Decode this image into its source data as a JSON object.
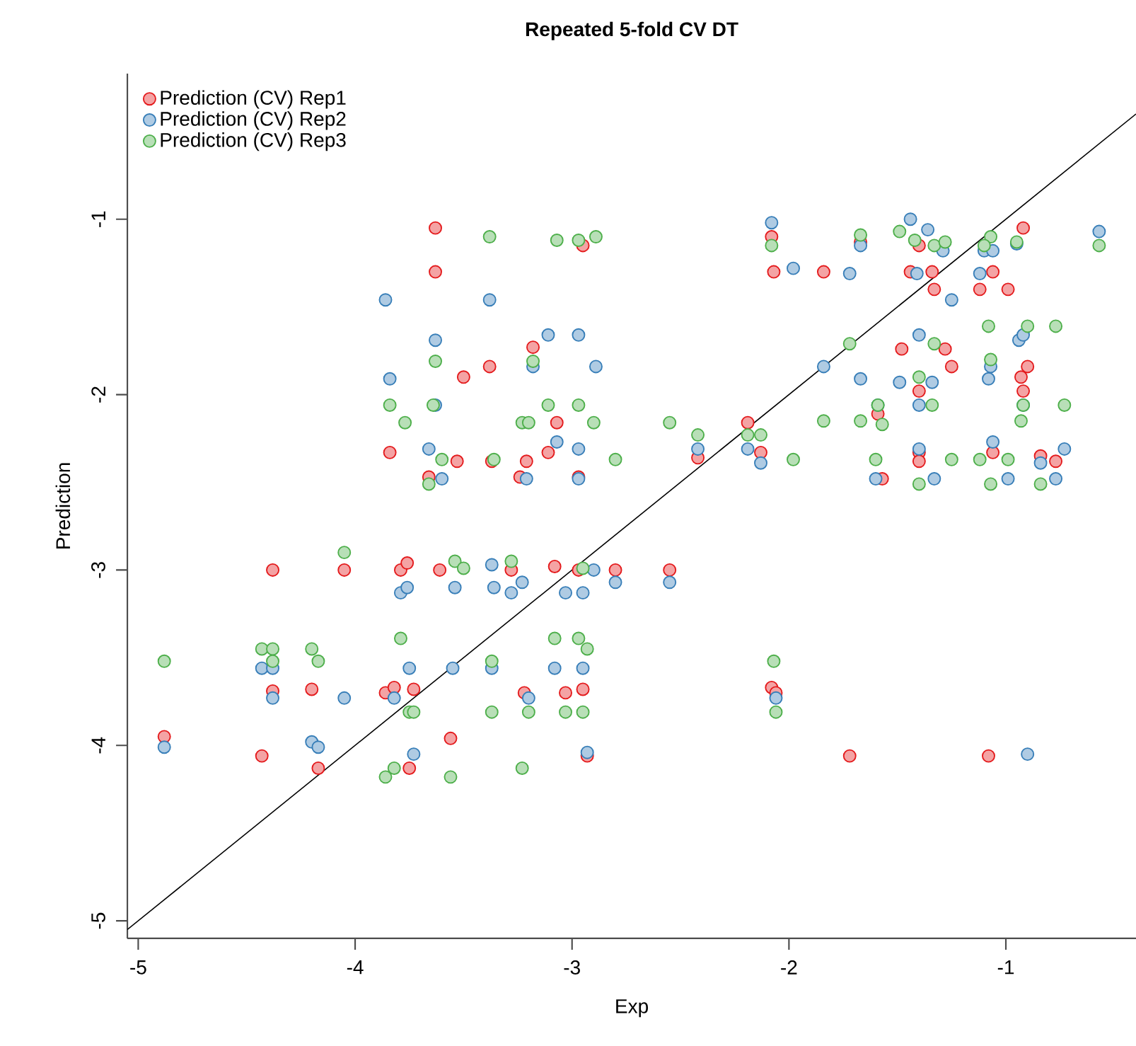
{
  "chart_data": {
    "type": "scatter",
    "title": "Repeated 5-fold CV DT",
    "xlabel": "Exp",
    "ylabel": "Prediction",
    "xlim": [
      -5.05,
      -0.4
    ],
    "ylim": [
      -5.1,
      -0.17
    ],
    "xticks": [
      -5,
      -4,
      -3,
      -2,
      -1
    ],
    "yticks": [
      -5,
      -4,
      -3,
      -2,
      -1
    ],
    "grid": false,
    "legend": "top left",
    "series": [
      {
        "name": "Prediction (CV) Rep1",
        "marker": "circle",
        "color": "#e41a1c",
        "x": [
          -4.88,
          -4.43,
          -4.38,
          -4.05,
          -4.2,
          -4.17,
          -4.38,
          -3.79,
          -3.76,
          -3.61,
          -3.28,
          -3.08,
          -2.97,
          -2.8,
          -2.55,
          -3.86,
          -3.82,
          -3.73,
          -3.56,
          -3.75,
          -3.22,
          -3.03,
          -2.95,
          -2.93,
          -2.08,
          -2.06,
          -1.72,
          -1.08,
          -3.63,
          -3.63,
          -2.95,
          -3.18,
          -3.38,
          -3.5,
          -3.84,
          -3.53,
          -3.37,
          -3.21,
          -3.11,
          -3.66,
          -3.24,
          -2.97,
          -3.07,
          -2.08,
          -1.67,
          -0.92,
          -2.07,
          -1.84,
          -1.44,
          -1.34,
          -1.06,
          -1.33,
          -1.12,
          -0.99,
          -1.4,
          -1.48,
          -1.28,
          -1.25,
          -0.9,
          -0.93,
          -0.92,
          -1.4,
          -1.59,
          -2.19,
          -2.42,
          -2.13,
          -1.4,
          -1.4,
          -1.06,
          -0.84,
          -0.77,
          -1.57
        ],
        "values": [
          -3.95,
          -4.06,
          -3.0,
          -3.0,
          -3.68,
          -4.13,
          -3.69,
          -3.0,
          -2.96,
          -3.0,
          -3.0,
          -2.98,
          -3.0,
          -3.0,
          -3.0,
          -3.7,
          -3.67,
          -3.68,
          -3.96,
          -4.13,
          -3.7,
          -3.7,
          -3.68,
          -4.06,
          -3.67,
          -3.7,
          -4.06,
          -4.06,
          -1.05,
          -1.3,
          -1.15,
          -1.73,
          -1.84,
          -1.9,
          -2.33,
          -2.38,
          -2.38,
          -2.38,
          -2.33,
          -2.47,
          -2.47,
          -2.47,
          -2.16,
          -1.1,
          -1.13,
          -1.05,
          -1.3,
          -1.3,
          -1.3,
          -1.3,
          -1.3,
          -1.4,
          -1.4,
          -1.4,
          -1.15,
          -1.74,
          -1.74,
          -1.84,
          -1.84,
          -1.9,
          -1.98,
          -1.98,
          -2.11,
          -2.16,
          -2.36,
          -2.33,
          -2.33,
          -2.38,
          -2.33,
          -2.35,
          -2.38,
          -2.48
        ]
      },
      {
        "name": "Prediction (CV) Rep2",
        "marker": "circle",
        "color": "#377eb8",
        "x": [
          -4.88,
          -4.43,
          -4.38,
          -4.38,
          -4.2,
          -4.17,
          -4.05,
          -3.79,
          -3.76,
          -3.54,
          -3.37,
          -3.36,
          -3.28,
          -3.23,
          -3.03,
          -2.95,
          -2.9,
          -2.8,
          -3.82,
          -3.75,
          -3.73,
          -3.55,
          -3.37,
          -3.2,
          -3.08,
          -2.95,
          -2.93,
          -2.55,
          -2.06,
          -0.9,
          -3.86,
          -3.38,
          -3.63,
          -3.11,
          -2.97,
          -3.18,
          -2.89,
          -3.84,
          -3.63,
          -3.07,
          -3.66,
          -2.97,
          -3.6,
          -3.21,
          -2.97,
          -2.08,
          -1.67,
          -1.44,
          -1.36,
          -1.29,
          -1.1,
          -1.06,
          -0.95,
          -0.57,
          -1.98,
          -1.72,
          -1.41,
          -1.12,
          -1.25,
          -1.4,
          -0.94,
          -0.92,
          -1.07,
          -1.08,
          -1.49,
          -1.34,
          -1.67,
          -1.84,
          -1.4,
          -1.59,
          -0.92,
          -2.42,
          -2.19,
          -2.13,
          -1.4,
          -1.06,
          -0.84,
          -0.73,
          -1.6,
          -1.33,
          -0.99,
          -0.77
        ],
        "values": [
          -4.01,
          -3.56,
          -3.56,
          -3.73,
          -3.98,
          -4.01,
          -3.73,
          -3.13,
          -3.1,
          -3.1,
          -2.97,
          -3.1,
          -3.13,
          -3.07,
          -3.13,
          -3.13,
          -3.0,
          -3.07,
          -3.73,
          -3.56,
          -4.05,
          -3.56,
          -3.56,
          -3.73,
          -3.56,
          -3.56,
          -4.04,
          -3.07,
          -3.73,
          -4.05,
          -1.46,
          -1.46,
          -1.69,
          -1.66,
          -1.66,
          -1.84,
          -1.84,
          -1.91,
          -2.06,
          -2.27,
          -2.31,
          -2.31,
          -2.48,
          -2.48,
          -2.48,
          -1.02,
          -1.15,
          -1.0,
          -1.06,
          -1.18,
          -1.18,
          -1.18,
          -1.14,
          -1.07,
          -1.28,
          -1.31,
          -1.31,
          -1.31,
          -1.46,
          -1.66,
          -1.69,
          -1.66,
          -1.84,
          -1.91,
          -1.93,
          -1.93,
          -1.91,
          -1.84,
          -2.06,
          -2.06,
          -2.06,
          -2.31,
          -2.31,
          -2.39,
          -2.31,
          -2.27,
          -2.39,
          -2.31,
          -2.48,
          -2.48,
          -2.48,
          -2.48
        ]
      },
      {
        "name": "Prediction (CV) Rep3",
        "marker": "circle",
        "color": "#4daf4a",
        "x": [
          -4.05,
          -3.54,
          -3.5,
          -3.28,
          -2.95,
          -4.88,
          -4.43,
          -4.38,
          -4.38,
          -4.2,
          -4.17,
          -3.79,
          -3.37,
          -3.08,
          -2.97,
          -2.93,
          -3.75,
          -3.73,
          -3.37,
          -3.2,
          -3.03,
          -2.95,
          -3.82,
          -3.86,
          -3.56,
          -3.23,
          -2.07,
          -2.06,
          -3.38,
          -3.07,
          -2.97,
          -2.89,
          -3.63,
          -3.18,
          -3.84,
          -3.64,
          -3.11,
          -2.97,
          -3.77,
          -3.23,
          -3.2,
          -2.9,
          -3.6,
          -3.36,
          -2.8,
          -3.66,
          -2.08,
          -1.67,
          -1.49,
          -1.42,
          -1.33,
          -1.28,
          -1.07,
          -1.1,
          -0.95,
          -0.57,
          -1.08,
          -0.9,
          -0.77,
          -1.72,
          -1.33,
          -1.07,
          -1.4,
          -1.59,
          -1.34,
          -0.73,
          -0.92,
          -0.93,
          -2.55,
          -1.84,
          -1.67,
          -1.57,
          -2.42,
          -2.19,
          -2.13,
          -1.98,
          -1.6,
          -1.25,
          -1.12,
          -0.99,
          -1.4,
          -1.07,
          -0.84
        ],
        "values": [
          -2.9,
          -2.95,
          -2.99,
          -2.95,
          -2.99,
          -3.52,
          -3.45,
          -3.45,
          -3.52,
          -3.45,
          -3.52,
          -3.39,
          -3.52,
          -3.39,
          -3.39,
          -3.45,
          -3.81,
          -3.81,
          -3.81,
          -3.81,
          -3.81,
          -3.81,
          -4.13,
          -4.18,
          -4.18,
          -4.13,
          -3.52,
          -3.81,
          -1.1,
          -1.12,
          -1.12,
          -1.1,
          -1.81,
          -1.81,
          -2.06,
          -2.06,
          -2.06,
          -2.06,
          -2.16,
          -2.16,
          -2.16,
          -2.16,
          -2.37,
          -2.37,
          -2.37,
          -2.51,
          -1.15,
          -1.09,
          -1.07,
          -1.12,
          -1.15,
          -1.13,
          -1.1,
          -1.15,
          -1.13,
          -1.15,
          -1.61,
          -1.61,
          -1.61,
          -1.71,
          -1.71,
          -1.8,
          -1.9,
          -2.06,
          -2.06,
          -2.06,
          -2.06,
          -2.15,
          -2.16,
          -2.15,
          -2.15,
          -2.17,
          -2.23,
          -2.23,
          -2.23,
          -2.37,
          -2.37,
          -2.37,
          -2.37,
          -2.37,
          -2.51,
          -2.51,
          -2.51
        ]
      },
      {
        "type": "line",
        "marker": "none",
        "color": "#000000",
        "x": [
          -5.05,
          -0.4
        ],
        "values": [
          -5.05,
          -0.4
        ]
      }
    ]
  }
}
